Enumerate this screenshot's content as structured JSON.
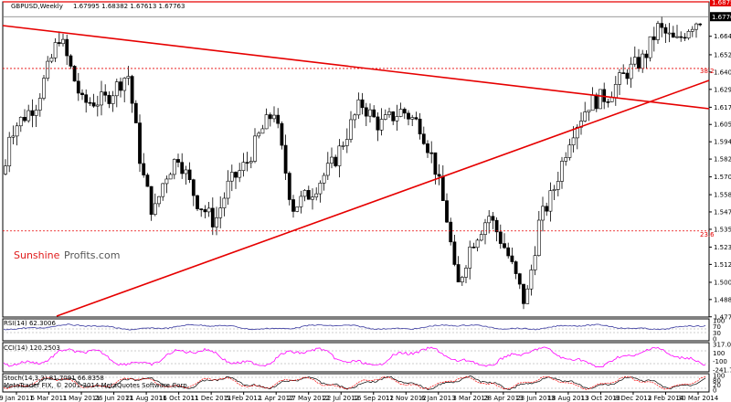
{
  "header": {
    "title": "GBPUSD,Weekly",
    "ohlc": "1.67995 1.68382 1.67613 1.67763"
  },
  "brand": {
    "part1": "Sunshine",
    "part2": "Profits.com",
    "color1": "#e01b1b",
    "color2": "#555555"
  },
  "fib_labels": {
    "top": "38.2",
    "bottom": "23.6"
  },
  "price_badges": {
    "resistance": "1.68750",
    "current": "1.67763"
  },
  "price_axis": [
    "1.66450",
    "1.65215",
    "1.64060",
    "1.62905",
    "1.61710",
    "1.60560",
    "1.59405",
    "1.58250",
    "1.57060",
    "1.55870",
    "1.54720",
    "1.53560",
    "1.52370",
    "1.51215",
    "1.50020",
    "1.48870",
    "1.47715"
  ],
  "date_axis": [
    "9 Jan 2011",
    "6 Mar 2011",
    "1 May 2011",
    "26 Jun 2011",
    "21 Aug 2011",
    "16 Oct 2011",
    "11 Dec 2011",
    "5 Feb 2012",
    "1 Apr 2012",
    "27 May 2012",
    "22 Jul 2012",
    "16 Sep 2012",
    "11 Nov 2012",
    "6 Jan 2013",
    "3 Mar 2013",
    "28 Apr 2013",
    "23 Jun 2013",
    "18 Aug 2013",
    "13 Oct 2013",
    "8 Dec 2013",
    "2 Feb 2014",
    "30 Mar 2014"
  ],
  "rsi": {
    "label": "RSI(14) 62.3006",
    "axis": [
      "100",
      "70",
      "30",
      "0"
    ]
  },
  "cci": {
    "label": "CCI(14) 120.2503",
    "axis": [
      "317.042",
      "100",
      "-100",
      "-241.7409"
    ]
  },
  "stoch": {
    "label": "Stoch(14,3,3) 81.7091 66.8358",
    "axis": [
      "100",
      "80",
      "20",
      "0"
    ],
    "footer": "MetaTrader FIX, © 2001-2014 MetaQuotes Software Corp."
  },
  "colors": {
    "trendline": "#e60000",
    "rsi": "#3a3aa0",
    "cci": "#ff00ff",
    "stoch_main": "#000000",
    "stoch_signal": "#ff0000"
  },
  "chart_data": {
    "type": "candlestick",
    "symbol": "GBPUSD",
    "timeframe": "Weekly",
    "ylim": [
      1.477,
      1.6875
    ],
    "last": {
      "open": 1.67995,
      "high": 1.68382,
      "low": 1.67613,
      "close": 1.67763
    },
    "horizontal_levels": [
      1.6875,
      1.6776,
      1.643,
      1.5345
    ]
  }
}
